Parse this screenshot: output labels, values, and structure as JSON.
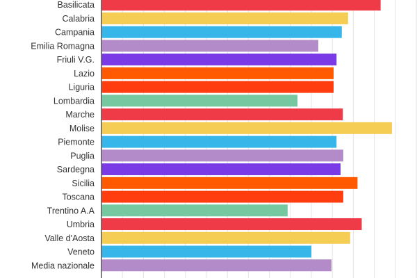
{
  "chart_data": {
    "type": "bar",
    "orientation": "horizontal",
    "categories": [
      "Basilicata",
      "Calabria",
      "Campania",
      "Emilia Romagna",
      "Friuli V.G.",
      "Lazio",
      "Liguria",
      "Lombardia",
      "Marche",
      "Molise",
      "Piemonte",
      "Puglia",
      "Sardegna",
      "Sicilia",
      "Toscana",
      "Trentino A.A",
      "Umbria",
      "Valle d'Aosta",
      "Veneto",
      "Media nazionale"
    ],
    "values": [
      13.3,
      11.75,
      11.45,
      10.33,
      11.2,
      11.06,
      11.06,
      9.34,
      11.5,
      13.84,
      11.2,
      11.52,
      11.39,
      12.2,
      11.52,
      8.87,
      12.4,
      11.85,
      10.0,
      10.96
    ],
    "colors": [
      "#EF3A47",
      "#F5CD55",
      "#37B6EA",
      "#B38BC9",
      "#7A3BE6",
      "#FF5A00",
      "#FF3D0F",
      "#76C8A0"
    ],
    "xlim": [
      0,
      15
    ],
    "grid": true,
    "value_units": "gridline intervals (axis unlabeled)"
  }
}
